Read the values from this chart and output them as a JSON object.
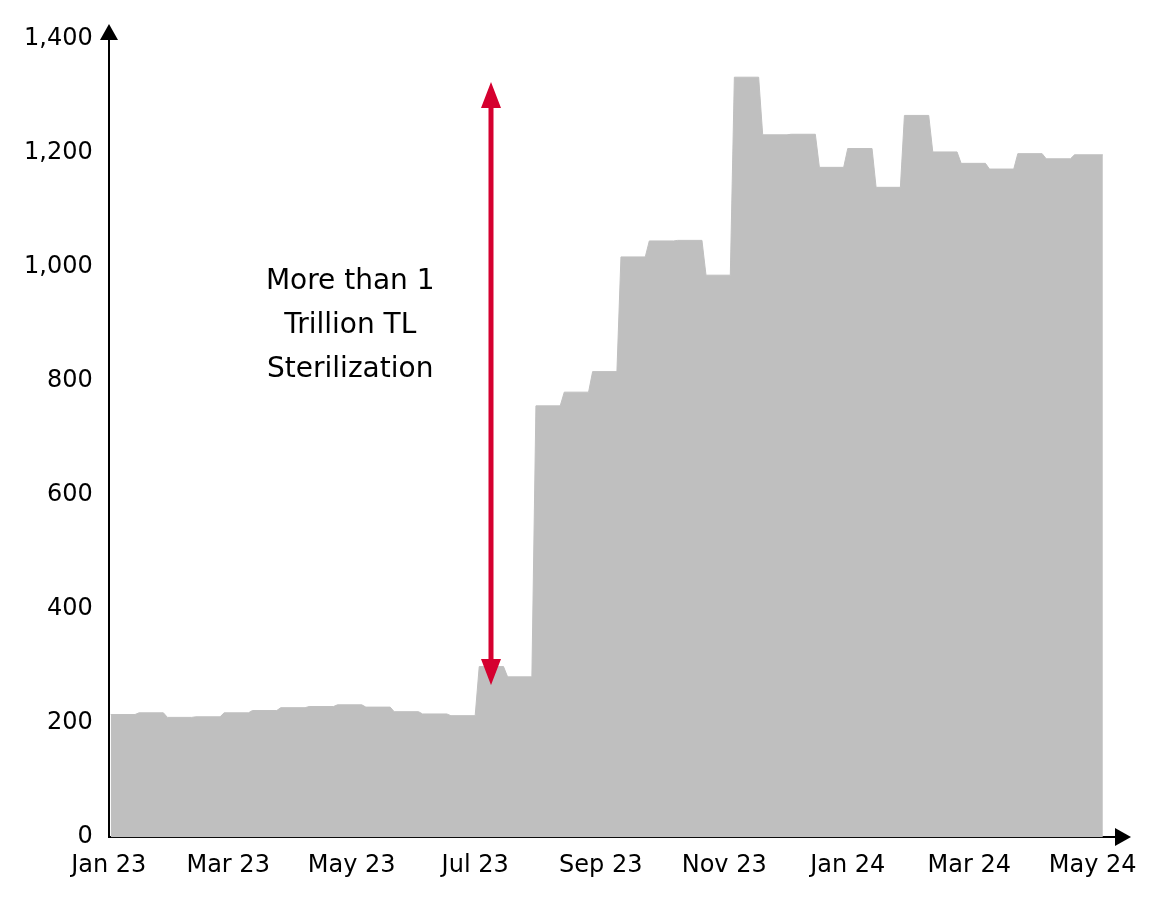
{
  "chart_data": {
    "type": "area",
    "color": "#bfbfbf",
    "x": [
      "2023-01-02",
      "2023-01-14",
      "2023-01-16",
      "2023-01-28",
      "2023-01-30",
      "2023-02-11",
      "2023-02-13",
      "2023-02-25",
      "2023-02-27",
      "2023-03-11",
      "2023-03-13",
      "2023-03-25",
      "2023-03-27",
      "2023-04-08",
      "2023-04-10",
      "2023-04-22",
      "2023-04-24",
      "2023-05-06",
      "2023-05-08",
      "2023-05-20",
      "2023-05-22",
      "2023-06-03",
      "2023-06-05",
      "2023-06-17",
      "2023-06-19",
      "2023-07-01",
      "2023-07-03",
      "2023-07-15",
      "2023-07-17",
      "2023-07-29",
      "2023-07-31",
      "2023-08-12",
      "2023-08-14",
      "2023-08-26",
      "2023-08-28",
      "2023-09-09",
      "2023-09-11",
      "2023-09-23",
      "2023-09-25",
      "2023-10-07",
      "2023-10-09",
      "2023-10-21",
      "2023-10-23",
      "2023-11-04",
      "2023-11-06",
      "2023-11-18",
      "2023-11-20",
      "2023-12-02",
      "2023-12-04",
      "2023-12-16",
      "2023-12-18",
      "2023-12-30",
      "2024-01-01",
      "2024-01-13",
      "2024-01-15",
      "2024-01-27",
      "2024-01-29",
      "2024-02-10",
      "2024-02-12",
      "2024-02-24",
      "2024-02-26",
      "2024-03-09",
      "2024-03-11",
      "2024-03-23",
      "2024-03-25",
      "2024-04-06",
      "2024-04-08",
      "2024-04-20",
      "2024-04-22",
      "2024-05-06"
    ],
    "values": [
      215,
      215,
      218,
      218,
      210,
      210,
      211,
      211,
      218,
      218,
      222,
      222,
      227,
      227,
      229,
      229,
      232,
      232,
      228,
      228,
      220,
      220,
      216,
      216,
      213,
      213,
      299,
      299,
      281,
      281,
      756,
      756,
      780,
      780,
      816,
      816,
      1017,
      1017,
      1045,
      1045,
      1046,
      1046,
      985,
      985,
      1332,
      1332,
      1231,
      1231,
      1232,
      1232,
      1174,
      1174,
      1207,
      1207,
      1139,
      1139,
      1265,
      1265,
      1201,
      1201,
      1181,
      1181,
      1171,
      1171,
      1198,
      1198,
      1189,
      1189,
      1196,
      1196
    ],
    "xlim": [
      "2023-01-01",
      "2024-05-12"
    ],
    "xticks": [
      {
        "value": "2023-01-01",
        "label": "Jan 23"
      },
      {
        "value": "2023-03-01",
        "label": "Mar 23"
      },
      {
        "value": "2023-05-01",
        "label": "May 23"
      },
      {
        "value": "2023-07-01",
        "label": "Jul 23"
      },
      {
        "value": "2023-09-01",
        "label": "Sep 23"
      },
      {
        "value": "2023-11-01",
        "label": "Nov 23"
      },
      {
        "value": "2024-01-01",
        "label": "Jan 24"
      },
      {
        "value": "2024-03-01",
        "label": "Mar 24"
      },
      {
        "value": "2024-05-01",
        "label": "May 24"
      }
    ],
    "ylim": [
      0,
      1400
    ],
    "yticks": [
      {
        "value": 0,
        "label": "0"
      },
      {
        "value": 200,
        "label": "200"
      },
      {
        "value": 400,
        "label": "400"
      },
      {
        "value": 600,
        "label": "600"
      },
      {
        "value": 800,
        "label": "800"
      },
      {
        "value": 1000,
        "label": "1,000"
      },
      {
        "value": 1200,
        "label": "1,200"
      },
      {
        "value": 1400,
        "label": "1,400"
      }
    ],
    "grid": false,
    "legend": false,
    "annotations": [
      "More than 1\nTrillion TL\nSterilization"
    ]
  }
}
